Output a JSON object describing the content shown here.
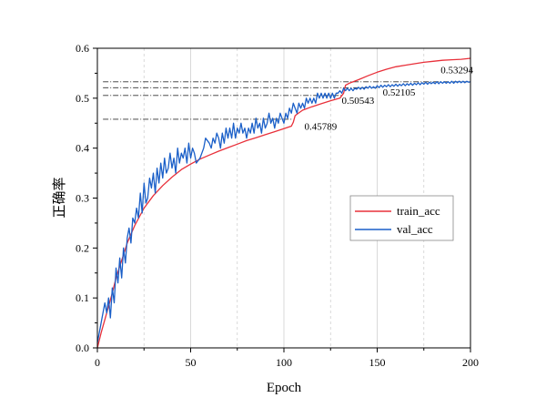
{
  "chart_data": {
    "type": "line",
    "title": "",
    "xlabel": "Epoch",
    "ylabel": "正确率",
    "xlim": [
      0,
      200
    ],
    "ylim": [
      0.0,
      0.6
    ],
    "xticks": [
      0,
      50,
      100,
      150,
      200
    ],
    "yticks": [
      0.0,
      0.1,
      0.2,
      0.3,
      0.4,
      0.5,
      0.6
    ],
    "xtick_labels": [
      "0",
      "50",
      "100",
      "150",
      "200"
    ],
    "ytick_labels": [
      "0.0",
      "0.1",
      "0.2",
      "0.3",
      "0.4",
      "0.5",
      "0.6"
    ],
    "grid": "vertical-minor-dashed",
    "legend_position": "center-right",
    "series": [
      {
        "name": "train_acc",
        "color": "#e8303a",
        "points": [
          [
            0,
            0.0
          ],
          [
            2,
            0.03
          ],
          [
            5,
            0.07
          ],
          [
            8,
            0.11
          ],
          [
            10,
            0.14
          ],
          [
            13,
            0.175
          ],
          [
            16,
            0.21
          ],
          [
            20,
            0.245
          ],
          [
            25,
            0.28
          ],
          [
            30,
            0.305
          ],
          [
            35,
            0.325
          ],
          [
            40,
            0.342
          ],
          [
            45,
            0.357
          ],
          [
            50,
            0.368
          ],
          [
            55,
            0.378
          ],
          [
            60,
            0.386
          ],
          [
            65,
            0.394
          ],
          [
            70,
            0.401
          ],
          [
            75,
            0.408
          ],
          [
            80,
            0.415
          ],
          [
            85,
            0.421
          ],
          [
            90,
            0.427
          ],
          [
            95,
            0.433
          ],
          [
            100,
            0.439
          ],
          [
            104,
            0.444
          ],
          [
            105,
            0.452
          ],
          [
            106,
            0.465
          ],
          [
            107,
            0.468
          ],
          [
            110,
            0.476
          ],
          [
            115,
            0.483
          ],
          [
            120,
            0.489
          ],
          [
            125,
            0.495
          ],
          [
            128,
            0.498
          ],
          [
            130,
            0.5
          ],
          [
            132,
            0.51
          ],
          [
            133,
            0.526
          ],
          [
            135,
            0.53
          ],
          [
            140,
            0.537
          ],
          [
            145,
            0.545
          ],
          [
            150,
            0.552
          ],
          [
            155,
            0.558
          ],
          [
            160,
            0.563
          ],
          [
            165,
            0.566
          ],
          [
            170,
            0.569
          ],
          [
            175,
            0.572
          ],
          [
            180,
            0.574
          ],
          [
            185,
            0.576
          ],
          [
            190,
            0.577
          ],
          [
            195,
            0.578
          ],
          [
            200,
            0.58
          ]
        ]
      },
      {
        "name": "val_acc",
        "color": "#1a5fc8",
        "points": [
          [
            0,
            0.01
          ],
          [
            2,
            0.05
          ],
          [
            4,
            0.09
          ],
          [
            5,
            0.07
          ],
          [
            6,
            0.1
          ],
          [
            7,
            0.06
          ],
          [
            8,
            0.12
          ],
          [
            9,
            0.09
          ],
          [
            10,
            0.16
          ],
          [
            11,
            0.13
          ],
          [
            12,
            0.18
          ],
          [
            13,
            0.14
          ],
          [
            14,
            0.2
          ],
          [
            15,
            0.17
          ],
          [
            16,
            0.22
          ],
          [
            17,
            0.24
          ],
          [
            18,
            0.21
          ],
          [
            19,
            0.26
          ],
          [
            20,
            0.25
          ],
          [
            21,
            0.28
          ],
          [
            22,
            0.26
          ],
          [
            23,
            0.31
          ],
          [
            24,
            0.27
          ],
          [
            25,
            0.33
          ],
          [
            26,
            0.29
          ],
          [
            27,
            0.3
          ],
          [
            28,
            0.34
          ],
          [
            29,
            0.32
          ],
          [
            30,
            0.35
          ],
          [
            31,
            0.31
          ],
          [
            32,
            0.36
          ],
          [
            33,
            0.33
          ],
          [
            34,
            0.37
          ],
          [
            35,
            0.34
          ],
          [
            36,
            0.38
          ],
          [
            37,
            0.35
          ],
          [
            38,
            0.36
          ],
          [
            39,
            0.39
          ],
          [
            40,
            0.36
          ],
          [
            41,
            0.38
          ],
          [
            42,
            0.35
          ],
          [
            43,
            0.4
          ],
          [
            44,
            0.37
          ],
          [
            45,
            0.39
          ],
          [
            46,
            0.38
          ],
          [
            47,
            0.4
          ],
          [
            48,
            0.37
          ],
          [
            49,
            0.41
          ],
          [
            50,
            0.38
          ],
          [
            51,
            0.4
          ],
          [
            52,
            0.39
          ],
          [
            53,
            0.37
          ],
          [
            55,
            0.38
          ],
          [
            57,
            0.4
          ],
          [
            58,
            0.42
          ],
          [
            60,
            0.41
          ],
          [
            61,
            0.4
          ],
          [
            62,
            0.42
          ],
          [
            63,
            0.41
          ],
          [
            64,
            0.43
          ],
          [
            65,
            0.42
          ],
          [
            66,
            0.4
          ],
          [
            67,
            0.43
          ],
          [
            68,
            0.41
          ],
          [
            69,
            0.44
          ],
          [
            70,
            0.42
          ],
          [
            71,
            0.44
          ],
          [
            72,
            0.42
          ],
          [
            73,
            0.45
          ],
          [
            74,
            0.42
          ],
          [
            75,
            0.44
          ],
          [
            76,
            0.43
          ],
          [
            77,
            0.45
          ],
          [
            78,
            0.43
          ],
          [
            79,
            0.44
          ],
          [
            80,
            0.42
          ],
          [
            81,
            0.44
          ],
          [
            82,
            0.43
          ],
          [
            83,
            0.45
          ],
          [
            84,
            0.43
          ],
          [
            85,
            0.46
          ],
          [
            86,
            0.44
          ],
          [
            87,
            0.45
          ],
          [
            88,
            0.43
          ],
          [
            89,
            0.46
          ],
          [
            90,
            0.44
          ],
          [
            91,
            0.45
          ],
          [
            92,
            0.47
          ],
          [
            93,
            0.45
          ],
          [
            94,
            0.46
          ],
          [
            95,
            0.44
          ],
          [
            96,
            0.46
          ],
          [
            97,
            0.45
          ],
          [
            98,
            0.47
          ],
          [
            99,
            0.46
          ],
          [
            100,
            0.45
          ],
          [
            101,
            0.47
          ],
          [
            102,
            0.46
          ],
          [
            103,
            0.48
          ],
          [
            104,
            0.47
          ],
          [
            105,
            0.49
          ],
          [
            106,
            0.48
          ],
          [
            107,
            0.47
          ],
          [
            108,
            0.49
          ],
          [
            109,
            0.48
          ],
          [
            110,
            0.49
          ],
          [
            111,
            0.48
          ],
          [
            112,
            0.5
          ],
          [
            113,
            0.49
          ],
          [
            114,
            0.5
          ],
          [
            115,
            0.49
          ],
          [
            116,
            0.5
          ],
          [
            117,
            0.49
          ],
          [
            118,
            0.51
          ],
          [
            119,
            0.5
          ],
          [
            120,
            0.51
          ],
          [
            121,
            0.5
          ],
          [
            122,
            0.51
          ],
          [
            123,
            0.5
          ],
          [
            124,
            0.51
          ],
          [
            125,
            0.5
          ],
          [
            126,
            0.51
          ],
          [
            127,
            0.5
          ],
          [
            128,
            0.51
          ],
          [
            129,
            0.51
          ],
          [
            130,
            0.515
          ],
          [
            131,
            0.51
          ],
          [
            132,
            0.52
          ],
          [
            133,
            0.515
          ],
          [
            134,
            0.52
          ],
          [
            135,
            0.515
          ],
          [
            136,
            0.52
          ],
          [
            137,
            0.515
          ],
          [
            138,
            0.52
          ],
          [
            139,
            0.518
          ],
          [
            140,
            0.522
          ],
          [
            141,
            0.518
          ],
          [
            142,
            0.522
          ],
          [
            143,
            0.518
          ],
          [
            144,
            0.523
          ],
          [
            145,
            0.52
          ],
          [
            146,
            0.524
          ],
          [
            147,
            0.52
          ],
          [
            148,
            0.523
          ],
          [
            149,
            0.52
          ],
          [
            150,
            0.525
          ],
          [
            151,
            0.521
          ],
          [
            152,
            0.526
          ],
          [
            153,
            0.522
          ],
          [
            154,
            0.526
          ],
          [
            155,
            0.523
          ],
          [
            156,
            0.527
          ],
          [
            157,
            0.523
          ],
          [
            158,
            0.527
          ],
          [
            159,
            0.524
          ],
          [
            160,
            0.528
          ],
          [
            161,
            0.524
          ],
          [
            162,
            0.528
          ],
          [
            163,
            0.525
          ],
          [
            164,
            0.529
          ],
          [
            165,
            0.525
          ],
          [
            166,
            0.529
          ],
          [
            167,
            0.526
          ],
          [
            168,
            0.53
          ],
          [
            169,
            0.526
          ],
          [
            170,
            0.53
          ],
          [
            171,
            0.527
          ],
          [
            172,
            0.531
          ],
          [
            173,
            0.527
          ],
          [
            174,
            0.531
          ],
          [
            175,
            0.528
          ],
          [
            176,
            0.532
          ],
          [
            177,
            0.528
          ],
          [
            178,
            0.532
          ],
          [
            179,
            0.529
          ],
          [
            180,
            0.532
          ],
          [
            181,
            0.529
          ],
          [
            182,
            0.533
          ],
          [
            183,
            0.529
          ],
          [
            184,
            0.533
          ],
          [
            185,
            0.53
          ],
          [
            186,
            0.533
          ],
          [
            187,
            0.53
          ],
          [
            188,
            0.533
          ],
          [
            189,
            0.53
          ],
          [
            190,
            0.534
          ],
          [
            191,
            0.53
          ],
          [
            192,
            0.534
          ],
          [
            193,
            0.531
          ],
          [
            194,
            0.534
          ],
          [
            195,
            0.531
          ],
          [
            196,
            0.534
          ],
          [
            197,
            0.531
          ],
          [
            198,
            0.534
          ],
          [
            199,
            0.532
          ],
          [
            200,
            0.533
          ]
        ]
      }
    ],
    "annotations": [
      {
        "label": "0.45789",
        "y": 0.45789,
        "x_end": 104,
        "label_x": 111,
        "label_y": 0.437
      },
      {
        "label": "0.50543",
        "y": 0.50543,
        "x_end": 131,
        "label_x": 131,
        "label_y": 0.489
      },
      {
        "label": "0.52105",
        "y": 0.52105,
        "x_end": 150,
        "label_x": 153,
        "label_y": 0.505
      },
      {
        "label": "0.53294",
        "y": 0.53294,
        "x_end": 200,
        "label_x": 184,
        "label_y": 0.55
      }
    ]
  }
}
